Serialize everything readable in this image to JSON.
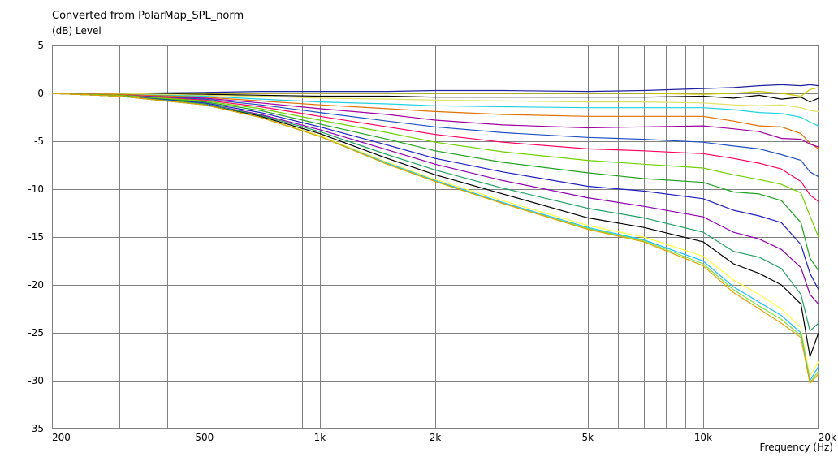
{
  "chart_data": {
    "type": "line",
    "title": "Converted from PolarMap_SPL_norm",
    "ylabel": "(dB)  Level",
    "xlabel": "Frequency  (Hz)",
    "x_scale": "log",
    "xlim": [
      200,
      20000
    ],
    "ylim": [
      -35,
      5
    ],
    "grid": true,
    "legend": "none",
    "x_ticks": [
      {
        "value": 200,
        "label": "200"
      },
      {
        "value": 500,
        "label": "500"
      },
      {
        "value": 1000,
        "label": "1k"
      },
      {
        "value": 2000,
        "label": "2k"
      },
      {
        "value": 5000,
        "label": "5k"
      },
      {
        "value": 10000,
        "label": "10k"
      },
      {
        "value": 20000,
        "label": "20k"
      }
    ],
    "x_gridlines": [
      300,
      400,
      500,
      600,
      700,
      800,
      900,
      1000,
      2000,
      3000,
      4000,
      5000,
      6000,
      7000,
      8000,
      9000,
      10000
    ],
    "y_ticks": [
      5,
      0,
      -5,
      -10,
      -15,
      -20,
      -25,
      -30,
      -35
    ],
    "x": [
      200,
      300,
      500,
      700,
      1000,
      1500,
      2000,
      3000,
      5000,
      7000,
      10000,
      12000,
      14000,
      16000,
      18000,
      19000,
      20000
    ],
    "series": [
      {
        "color": "#2020a0",
        "values": [
          0,
          0,
          0.1,
          0.2,
          0.2,
          0.2,
          0.3,
          0.3,
          0.2,
          0.3,
          0.5,
          0.6,
          0.8,
          0.9,
          0.8,
          0.9,
          0.8
        ]
      },
      {
        "color": "#c8c800",
        "values": [
          0,
          0,
          0,
          0,
          0,
          0,
          0,
          0,
          0,
          0,
          -0.1,
          0,
          0.2,
          0,
          -0.3,
          0.4,
          0.6
        ]
      },
      {
        "color": "#000000",
        "values": [
          0,
          0,
          -0.1,
          -0.2,
          -0.3,
          -0.3,
          -0.4,
          -0.4,
          -0.4,
          -0.4,
          -0.3,
          -0.5,
          -0.2,
          -0.6,
          -0.4,
          -0.9,
          -0.5
        ]
      },
      {
        "color": "#e0e060",
        "values": [
          0,
          0,
          -0.2,
          -0.3,
          -0.5,
          -0.6,
          -0.7,
          -0.8,
          -0.9,
          -0.9,
          -1.0,
          -1.2,
          -1.3,
          -1.2,
          -1.5,
          -1.8,
          -1.9
        ]
      },
      {
        "color": "#20d0e0",
        "values": [
          0,
          -0.1,
          -0.3,
          -0.6,
          -0.9,
          -1.1,
          -1.3,
          -1.4,
          -1.5,
          -1.5,
          -1.5,
          -1.7,
          -2.0,
          -2.1,
          -2.5,
          -3.0,
          -3.4
        ]
      },
      {
        "color": "#e07000",
        "values": [
          0,
          -0.1,
          -0.4,
          -0.8,
          -1.2,
          -1.6,
          -1.9,
          -2.2,
          -2.4,
          -2.4,
          -2.4,
          -2.9,
          -3.4,
          -3.5,
          -4.2,
          -5.2,
          -5.8
        ]
      },
      {
        "color": "#a000a0",
        "values": [
          0,
          -0.2,
          -0.5,
          -1.0,
          -1.6,
          -2.2,
          -2.8,
          -3.3,
          -3.6,
          -3.5,
          -3.4,
          -3.7,
          -4.0,
          -4.7,
          -4.8,
          -5.3,
          -5.6
        ]
      },
      {
        "color": "#2050c0",
        "values": [
          0,
          -0.2,
          -0.6,
          -1.2,
          -2.0,
          -2.9,
          -3.5,
          -4.1,
          -4.6,
          -4.8,
          -5.1,
          -5.5,
          -5.8,
          -6.4,
          -7.0,
          -8.2,
          -8.7
        ]
      },
      {
        "color": "#ff0060",
        "values": [
          0,
          -0.2,
          -0.7,
          -1.4,
          -2.4,
          -3.5,
          -4.3,
          -5.1,
          -5.8,
          -6.0,
          -6.3,
          -6.8,
          -7.3,
          -7.9,
          -9.2,
          -10.6,
          -11.3
        ]
      },
      {
        "color": "#70d000",
        "values": [
          0,
          -0.2,
          -0.8,
          -1.6,
          -2.8,
          -4.1,
          -5.1,
          -6.1,
          -7.0,
          -7.4,
          -7.8,
          -8.5,
          -9.0,
          -9.5,
          -10.4,
          -12.8,
          -15.0
        ]
      },
      {
        "color": "#20a020",
        "values": [
          0,
          -0.3,
          -0.9,
          -1.8,
          -3.2,
          -4.8,
          -6.0,
          -7.2,
          -8.3,
          -8.9,
          -9.3,
          -10.3,
          -10.5,
          -11.2,
          -13.5,
          -17.2,
          -18.5
        ]
      },
      {
        "color": "#2020c0",
        "values": [
          0,
          -0.3,
          -1.0,
          -2.0,
          -3.5,
          -5.4,
          -6.8,
          -8.2,
          -9.7,
          -10.2,
          -11.0,
          -12.2,
          -12.8,
          -13.5,
          -15.8,
          -18.8,
          -20.5
        ]
      },
      {
        "color": "#9000b0",
        "values": [
          0,
          -0.3,
          -1.1,
          -2.2,
          -3.8,
          -5.9,
          -7.4,
          -9.1,
          -10.9,
          -11.8,
          -12.9,
          -14.5,
          -15.2,
          -16.3,
          -18.2,
          -21.0,
          -22.0
        ]
      },
      {
        "color": "#20a060",
        "values": [
          0,
          -0.3,
          -1.1,
          -2.3,
          -4.0,
          -6.4,
          -8.0,
          -9.9,
          -12.0,
          -13.0,
          -14.5,
          -16.5,
          -17.1,
          -18.3,
          -21.0,
          -24.8,
          -24.0
        ]
      },
      {
        "color": "#000000",
        "values": [
          0,
          -0.3,
          -1.2,
          -2.4,
          -4.2,
          -6.8,
          -8.5,
          -10.5,
          -13.0,
          -14.0,
          -15.5,
          -17.8,
          -18.8,
          -20.0,
          -22.0,
          -27.5,
          -25.0
        ]
      },
      {
        "color": "#ffff40",
        "values": [
          0,
          -0.3,
          -1.2,
          -2.5,
          -4.4,
          -7.2,
          -9.0,
          -11.2,
          -13.8,
          -15.0,
          -17.0,
          -19.5,
          -21.0,
          -22.5,
          -24.5,
          -29.5,
          -28.0
        ]
      },
      {
        "color": "#20c0ff",
        "values": [
          0,
          -0.3,
          -1.2,
          -2.5,
          -4.5,
          -7.3,
          -9.1,
          -11.4,
          -14.0,
          -15.3,
          -17.5,
          -20.2,
          -21.8,
          -23.2,
          -25.0,
          -30.0,
          -28.5
        ]
      },
      {
        "color": "#80e040",
        "values": [
          0,
          -0.3,
          -1.2,
          -2.5,
          -4.5,
          -7.4,
          -9.2,
          -11.5,
          -14.1,
          -15.4,
          -17.8,
          -20.5,
          -22.2,
          -23.6,
          -25.3,
          -30.2,
          -29.0
        ]
      },
      {
        "color": "#e0a000",
        "values": [
          0,
          -0.3,
          -1.2,
          -2.5,
          -4.5,
          -7.4,
          -9.2,
          -11.5,
          -14.2,
          -15.5,
          -18.0,
          -20.8,
          -22.5,
          -24.0,
          -25.5,
          -30.3,
          -29.3
        ]
      }
    ]
  }
}
